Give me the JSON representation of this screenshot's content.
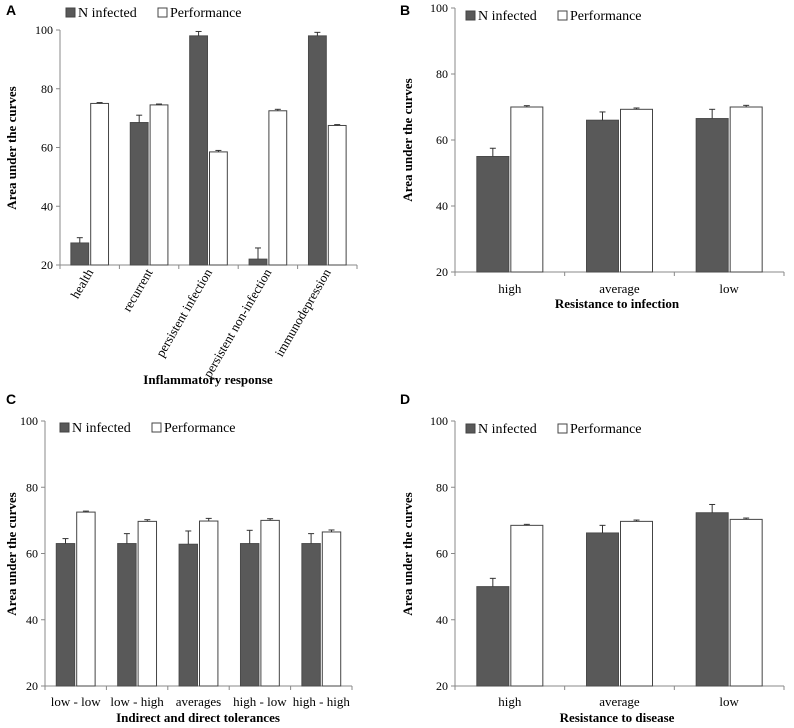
{
  "series_names": [
    "N infected",
    "Performance"
  ],
  "series_colors": [
    "#595959",
    "#ffffff"
  ],
  "chart_data": [
    {
      "panel": "A",
      "type": "bar",
      "xlabel": "Inflammatory response",
      "ylabel": "Area under the curves",
      "ylim": [
        20,
        100
      ],
      "yticks": [
        20,
        40,
        60,
        80,
        100
      ],
      "categories": [
        "health",
        "recurrent",
        "persistent infection",
        "persistent non-infection",
        "immunodepression"
      ],
      "category_label_rotation": "rotated",
      "legend": "top-left",
      "series": [
        {
          "name": "N infected",
          "values": [
            27.5,
            68.5,
            98.0,
            22.0,
            98.0
          ],
          "errors": [
            1.8,
            2.5,
            1.5,
            3.8,
            1.2
          ]
        },
        {
          "name": "Performance",
          "values": [
            75.0,
            74.5,
            58.5,
            72.5,
            67.5
          ],
          "errors": [
            0.3,
            0.3,
            0.5,
            0.5,
            0.3
          ]
        }
      ]
    },
    {
      "panel": "B",
      "type": "bar",
      "xlabel": "Resistance to infection",
      "ylabel": "Area under the curves",
      "ylim": [
        20,
        100
      ],
      "yticks": [
        20,
        40,
        60,
        80,
        100
      ],
      "categories": [
        "high",
        "average",
        "low"
      ],
      "category_label_rotation": "horizontal",
      "legend": "top-left",
      "series": [
        {
          "name": "N infected",
          "values": [
            55.0,
            66.0,
            66.5
          ],
          "errors": [
            2.5,
            2.5,
            2.8
          ]
        },
        {
          "name": "Performance",
          "values": [
            70.0,
            69.3,
            70.0
          ],
          "errors": [
            0.4,
            0.4,
            0.5
          ]
        }
      ]
    },
    {
      "panel": "C",
      "type": "bar",
      "xlabel": "Indirect and direct tolerances",
      "ylabel": "Area under the curves",
      "ylim": [
        20,
        100
      ],
      "yticks": [
        20,
        40,
        60,
        80,
        100
      ],
      "categories": [
        "low - low",
        "low - high",
        "averages",
        "high - low",
        "high - high"
      ],
      "category_label_rotation": "horizontal",
      "legend": "top-left",
      "series": [
        {
          "name": "N infected",
          "values": [
            63.0,
            63.0,
            62.8,
            63.0,
            63.0
          ],
          "errors": [
            1.5,
            3.0,
            4.0,
            4.0,
            3.0
          ]
        },
        {
          "name": "Performance",
          "values": [
            72.5,
            69.7,
            69.8,
            70.0,
            66.5
          ],
          "errors": [
            0.3,
            0.5,
            0.8,
            0.5,
            0.6
          ]
        }
      ]
    },
    {
      "panel": "D",
      "type": "bar",
      "xlabel": "Resistance to disease",
      "ylabel": "Area under the curves",
      "ylim": [
        20,
        100
      ],
      "yticks": [
        20,
        40,
        60,
        80,
        100
      ],
      "categories": [
        "high",
        "average",
        "low"
      ],
      "category_label_rotation": "horizontal",
      "legend": "top-left",
      "series": [
        {
          "name": "N infected",
          "values": [
            50.0,
            66.2,
            72.3
          ],
          "errors": [
            2.5,
            2.3,
            2.5
          ]
        },
        {
          "name": "Performance",
          "values": [
            68.5,
            69.7,
            70.3
          ],
          "errors": [
            0.3,
            0.4,
            0.4
          ]
        }
      ]
    }
  ]
}
